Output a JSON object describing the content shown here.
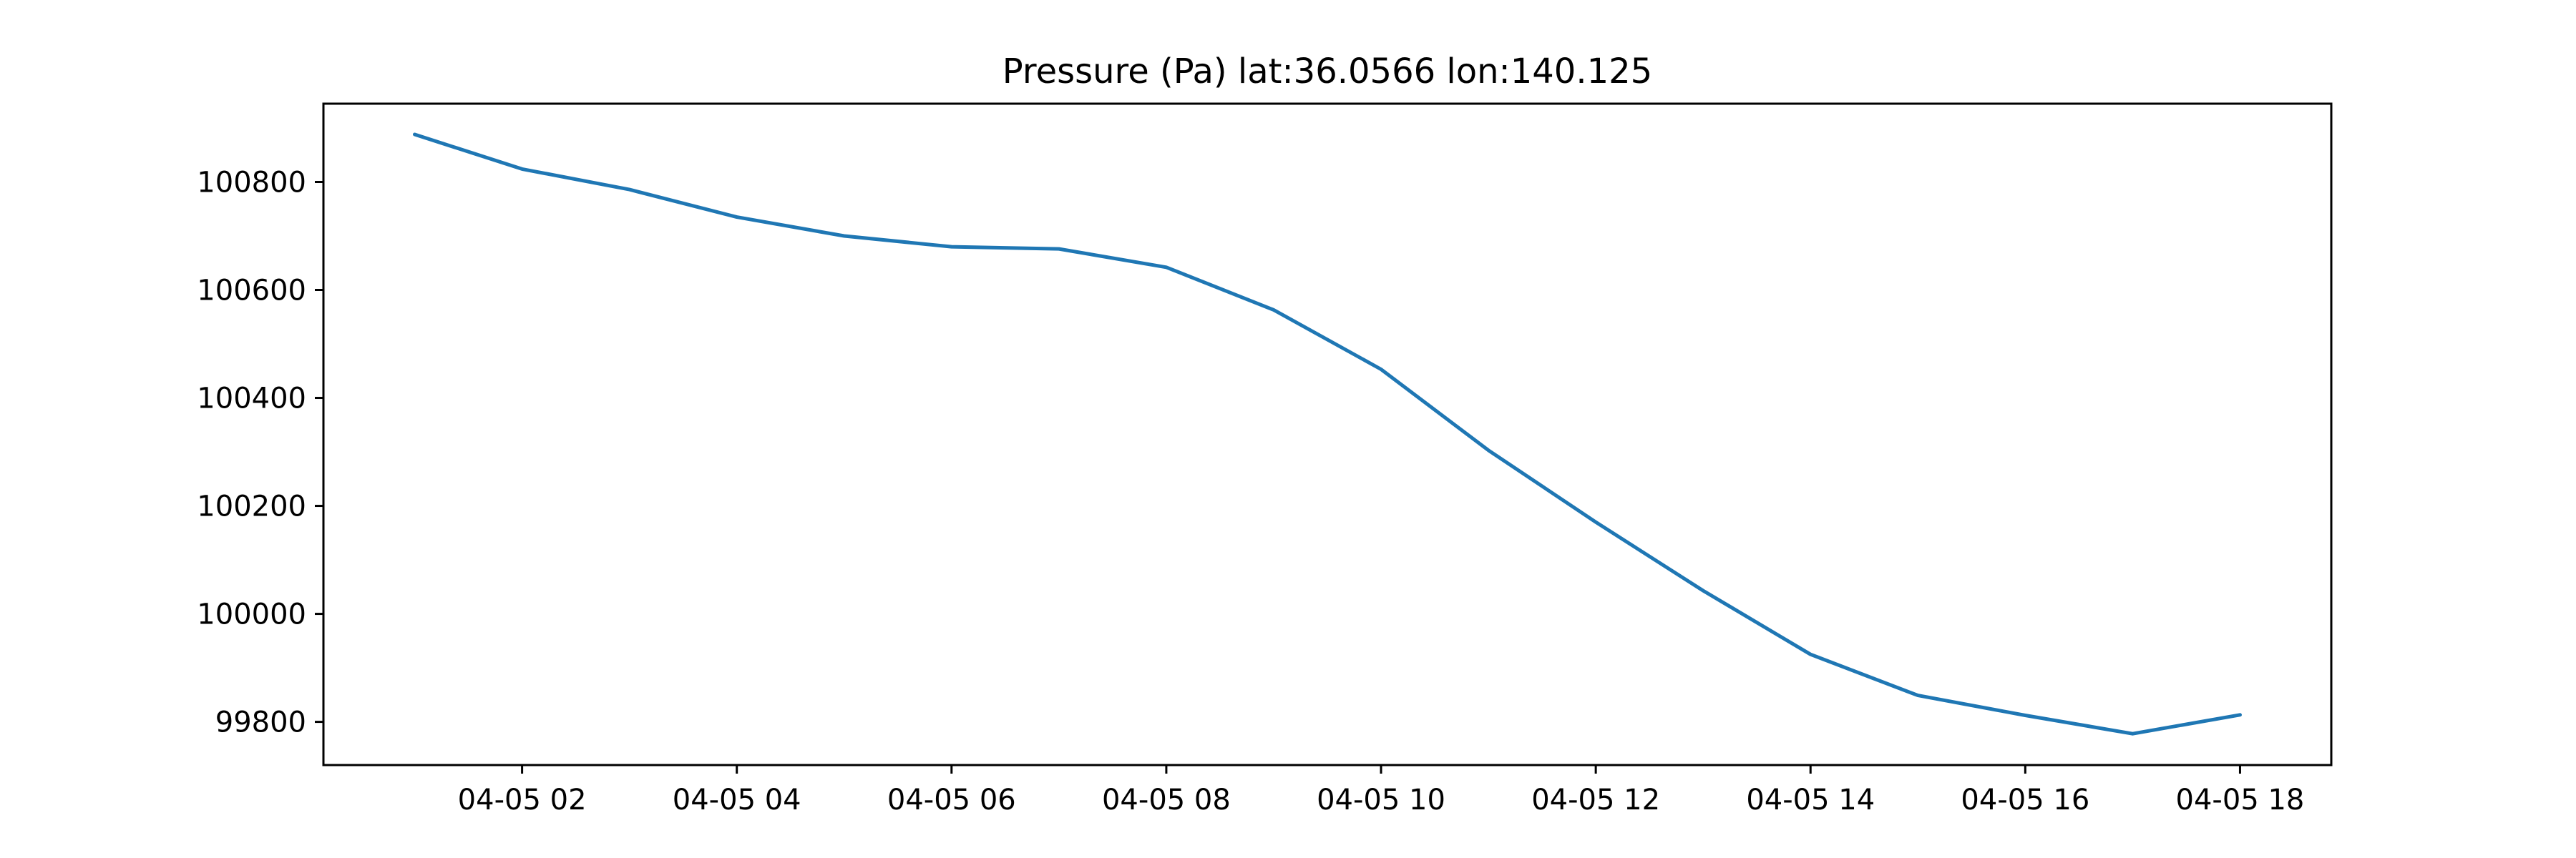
{
  "chart_data": {
    "type": "line",
    "title": "Pressure (Pa) lat:36.0566 lon:140.125",
    "xlabel": "",
    "ylabel": "",
    "x_tick_labels": [
      "04-05 02",
      "04-05 04",
      "04-05 06",
      "04-05 08",
      "04-05 10",
      "04-05 12",
      "04-05 14",
      "04-05 16",
      "04-05 18"
    ],
    "x_ticks": [
      "04-05 02:00",
      "04-05 04:00",
      "04-05 06:00",
      "04-05 08:00",
      "04-05 10:00",
      "04-05 12:00",
      "04-05 14:00",
      "04-05 16:00",
      "04-05 18:00"
    ],
    "y_ticks": [
      99800,
      100000,
      100200,
      100400,
      100600,
      100800
    ],
    "xlim": [
      "04-05 00:09",
      "04-05 18:51"
    ],
    "ylim": [
      99720,
      100945
    ],
    "grid": false,
    "legend": "none",
    "series": [
      {
        "x": [
          "04-05 01:00",
          "04-05 02:00",
          "04-05 03:00",
          "04-05 04:00",
          "04-05 05:00",
          "04-05 06:00",
          "04-05 07:00",
          "04-05 08:00",
          "04-05 09:00",
          "04-05 10:00",
          "04-05 11:00",
          "04-05 12:00",
          "04-05 13:00",
          "04-05 14:00",
          "04-05 15:00",
          "04-05 16:00",
          "04-05 17:00",
          "04-05 18:00"
        ],
        "values": [
          100888,
          100824,
          100786,
          100735,
          100700,
          100680,
          100676,
          100642,
          100563,
          100453,
          100303,
          100170,
          100043,
          99925,
          99849,
          99812,
          99778,
          99813
        ],
        "color": "#1f77b4"
      }
    ]
  }
}
